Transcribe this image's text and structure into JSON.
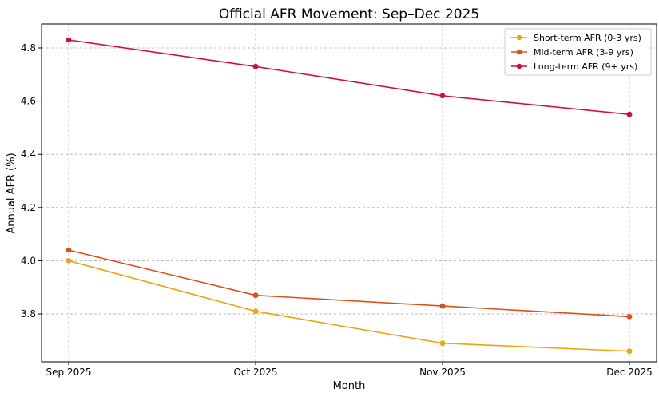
{
  "chart_data": {
    "type": "line",
    "title": "Official AFR Movement: Sep–Dec 2025",
    "xlabel": "Month",
    "ylabel": "Annual AFR (%)",
    "categories": [
      "Sep 2025",
      "Oct 2025",
      "Nov 2025",
      "Dec 2025"
    ],
    "ylim": [
      3.62,
      4.89
    ],
    "yticks": [
      3.8,
      4.0,
      4.2,
      4.4,
      4.6,
      4.8
    ],
    "ytick_labels": [
      "3.8",
      "4.0",
      "4.2",
      "4.4",
      "4.6",
      "4.8"
    ],
    "grid": true,
    "legend_position": "top-right",
    "series": [
      {
        "name": "Short-term AFR (0-3 yrs)",
        "color": "#f0a30a",
        "values": [
          4.0,
          3.81,
          3.69,
          3.66
        ]
      },
      {
        "name": "Mid-term AFR (3-9 yrs)",
        "color": "#d95319",
        "values": [
          4.04,
          3.87,
          3.83,
          3.79
        ]
      },
      {
        "name": "Long-term AFR (9+ yrs)",
        "color": "#d0103a",
        "values": [
          4.83,
          4.73,
          4.62,
          4.55
        ]
      }
    ]
  }
}
